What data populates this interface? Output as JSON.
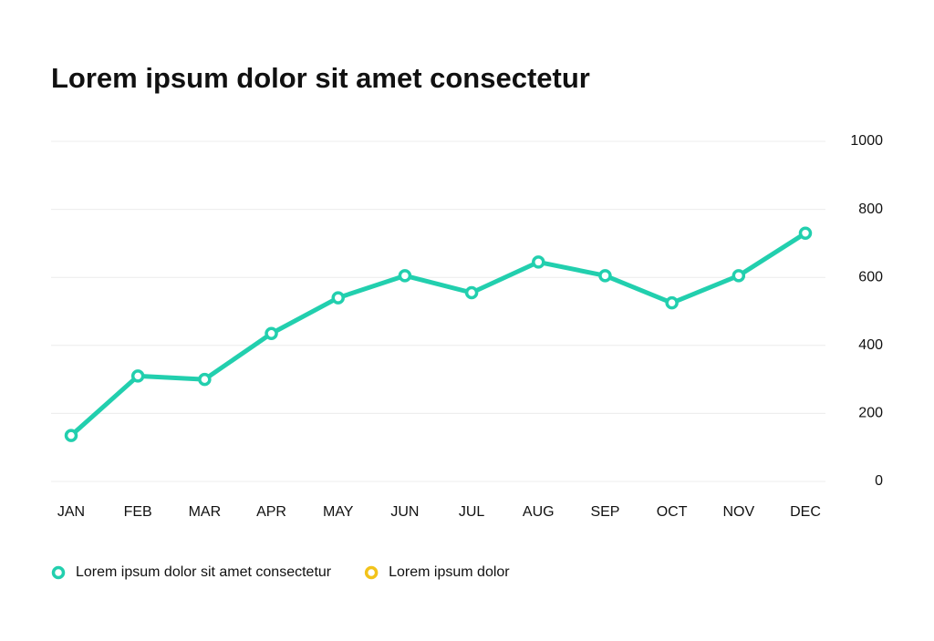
{
  "chart_data": {
    "type": "line",
    "title": "Lorem ipsum dolor sit amet consectetur",
    "categories": [
      "JAN",
      "FEB",
      "MAR",
      "APR",
      "MAY",
      "JUN",
      "JUL",
      "AUG",
      "SEP",
      "OCT",
      "NOV",
      "DEC"
    ],
    "series": [
      {
        "name": "Lorem ipsum dolor sit amet consectetur",
        "color": "#22cfae",
        "values": [
          135,
          310,
          300,
          435,
          540,
          605,
          555,
          645,
          605,
          525,
          605,
          730
        ]
      },
      {
        "name": "Lorem ipsum dolor",
        "color": "#f2c31b",
        "values": [
          null,
          null,
          null,
          null,
          null,
          null,
          null,
          null,
          null,
          null,
          null,
          null
        ]
      }
    ],
    "ylim": [
      0,
      1000
    ],
    "yticks": [
      0,
      200,
      400,
      600,
      800,
      1000
    ],
    "grid": true,
    "y_axis_side": "right",
    "legend": "bottom-left"
  }
}
